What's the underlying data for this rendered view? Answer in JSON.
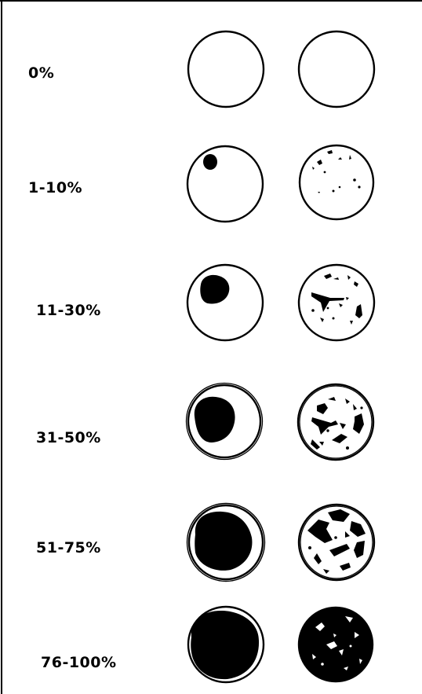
{
  "rows": [
    {
      "label": "0%"
    },
    {
      "label": "1-10%"
    },
    {
      "label": "11-30%"
    },
    {
      "label": "31-50%"
    },
    {
      "label": "51-75%"
    },
    {
      "label": "76-100%"
    }
  ]
}
